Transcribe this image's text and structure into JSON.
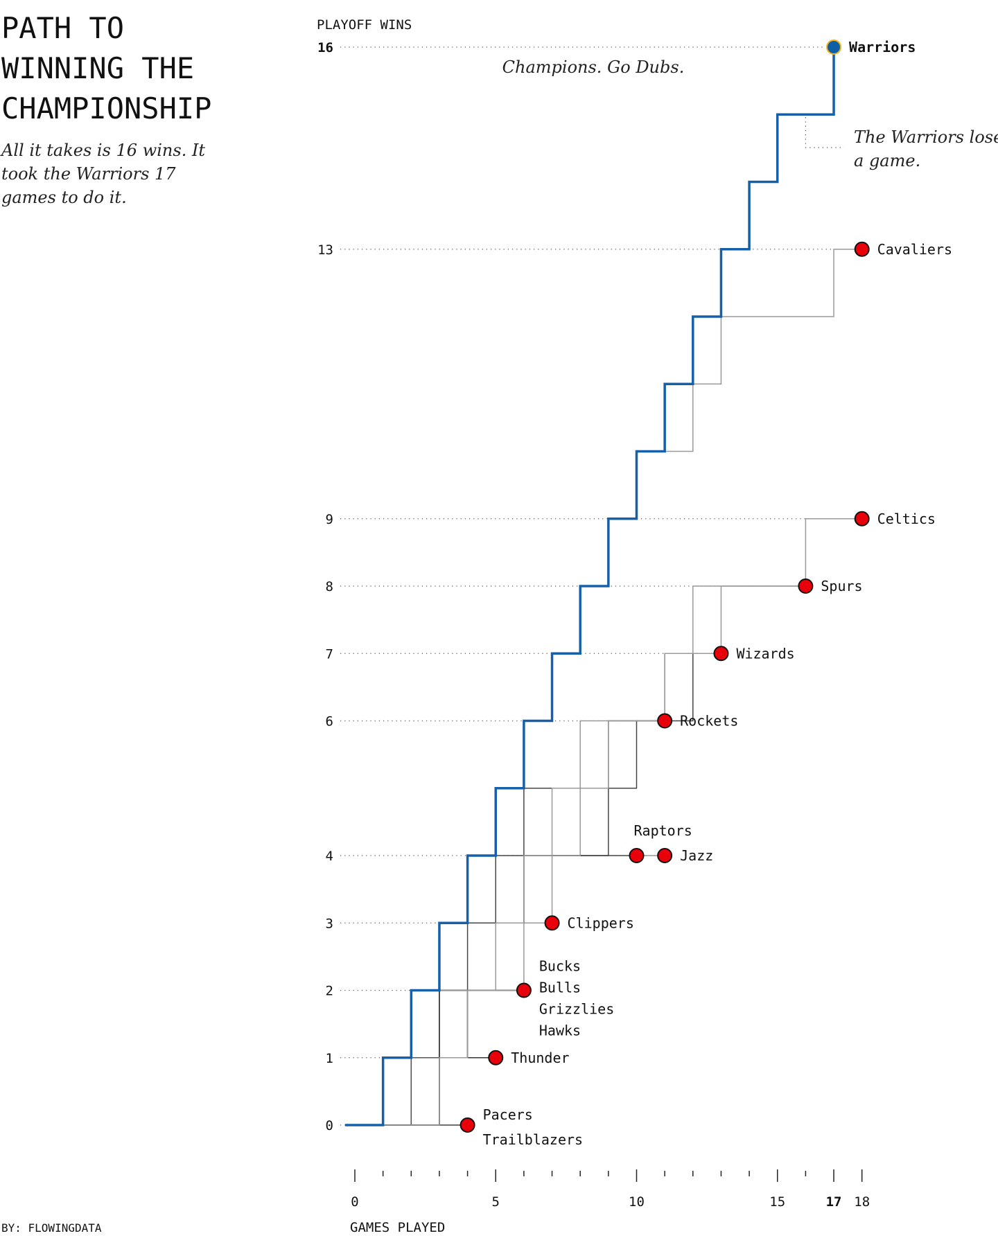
{
  "title": "PATH TO WINNING THE CHAMPIONSHIP",
  "subtitle": "All it takes is 16 wins. It took the Warriors 17 games to do it.",
  "byline": "BY: FLOWINGDATA",
  "chart_data": {
    "type": "line",
    "ylabel": "PLAYOFF WINS",
    "xlabel": "GAMES PLAYED",
    "xlim": [
      0,
      18
    ],
    "ylim": [
      0,
      16
    ],
    "x_ticks": [
      0,
      1,
      2,
      3,
      4,
      5,
      6,
      7,
      8,
      9,
      10,
      11,
      12,
      13,
      14,
      15,
      16,
      17,
      18
    ],
    "x_tick_labels": [
      {
        "value": 0,
        "label": "0"
      },
      {
        "value": 5,
        "label": "5"
      },
      {
        "value": 10,
        "label": "10"
      },
      {
        "value": 15,
        "label": "15"
      },
      {
        "value": 17,
        "label": "17",
        "bold": true
      },
      {
        "value": 18,
        "label": "18"
      }
    ],
    "y_tick_labels": [
      {
        "value": 0,
        "label": "0"
      },
      {
        "value": 1,
        "label": "1"
      },
      {
        "value": 2,
        "label": "2"
      },
      {
        "value": 3,
        "label": "3"
      },
      {
        "value": 4,
        "label": "4"
      },
      {
        "value": 6,
        "label": "6"
      },
      {
        "value": 7,
        "label": "7"
      },
      {
        "value": 8,
        "label": "8"
      },
      {
        "value": 9,
        "label": "9"
      },
      {
        "value": 13,
        "label": "13"
      },
      {
        "value": 16,
        "label": "16",
        "bold": true
      }
    ],
    "series": [
      {
        "name": "Pacers",
        "results": "LLLL",
        "color": "#888888"
      },
      {
        "name": "Trailblazers",
        "results": "LLLL",
        "color": "#555555"
      },
      {
        "name": "Thunder",
        "results": "LLWLL",
        "color": "#333333"
      },
      {
        "name": "Bucks",
        "results": "WLWLLL",
        "color": "#999999"
      },
      {
        "name": "Bulls",
        "results": "WWLLLL",
        "color": "#444444"
      },
      {
        "name": "Grizzlies",
        "results": "LLWWLL",
        "color": "#999999"
      },
      {
        "name": "Hawks",
        "results": "LLWWLL",
        "color": "#444444"
      },
      {
        "name": "Clippers",
        "results": "LWWLWLL",
        "color": "#222222"
      },
      {
        "name": "Jazz",
        "results": "WLLWLWWLLLL",
        "color": "#999999"
      },
      {
        "name": "Raptors",
        "results": "LWLWWWLLLL",
        "color": "#555555"
      },
      {
        "name": "Rockets",
        "results": "WWLWWWLLWLL",
        "color": "#444444"
      },
      {
        "name": "Wizards",
        "results": "WWLLWWLLWWLWL",
        "color": "#444444"
      },
      {
        "name": "Spurs",
        "results": "WWLLWWLWWLWWLLLL",
        "color": "#999999"
      },
      {
        "name": "Celtics",
        "results": "LLWWWWWWLLWLWLLWLL",
        "color": "#999999"
      },
      {
        "name": "Cavaliers",
        "results": "WWWWWWWWWWLWWLLLWL",
        "color": "#999999"
      },
      {
        "name": "Warriors",
        "results": "WWWWWWWWWWWWWWWLW",
        "color": "#1560a8",
        "highlight": true
      }
    ],
    "endpoints": [
      {
        "games": 4,
        "wins": 0,
        "labels": [
          "Pacers",
          "Trailblazers"
        ],
        "placement": "split"
      },
      {
        "games": 5,
        "wins": 1,
        "labels": [
          "Thunder"
        ],
        "placement": "right"
      },
      {
        "games": 6,
        "wins": 2,
        "labels": [
          "Bucks",
          "Bulls",
          "Grizzlies",
          "Hawks"
        ],
        "placement": "stack"
      },
      {
        "games": 7,
        "wins": 3,
        "labels": [
          "Clippers"
        ],
        "placement": "right"
      },
      {
        "games": 10,
        "wins": 4,
        "labels": [
          "Raptors"
        ],
        "placement": "above"
      },
      {
        "games": 11,
        "wins": 4,
        "labels": [
          "Jazz"
        ],
        "placement": "right"
      },
      {
        "games": 11,
        "wins": 6,
        "labels": [
          "Rockets"
        ],
        "placement": "right"
      },
      {
        "games": 13,
        "wins": 7,
        "labels": [
          "Wizards"
        ],
        "placement": "right"
      },
      {
        "games": 16,
        "wins": 8,
        "labels": [
          "Spurs"
        ],
        "placement": "right"
      },
      {
        "games": 18,
        "wins": 9,
        "labels": [
          "Celtics"
        ],
        "placement": "right"
      },
      {
        "games": 18,
        "wins": 13,
        "labels": [
          "Cavaliers"
        ],
        "placement": "right"
      },
      {
        "games": 17,
        "wins": 16,
        "labels": [
          "Warriors"
        ],
        "placement": "right",
        "highlight": true
      }
    ],
    "annotations": [
      {
        "text": "Champions. Go Dubs.",
        "games": 11.5,
        "wins": 16
      },
      {
        "text_lines": [
          "The Warriors lose",
          "a game."
        ],
        "games": 16,
        "wins": 15
      }
    ],
    "colors": {
      "dot": "#e8000b",
      "dot_stroke": "#111111",
      "champion_dot": "#0f5fa6",
      "champion_stroke": "#f2b61c",
      "warriors_line": "#1560a8"
    }
  }
}
